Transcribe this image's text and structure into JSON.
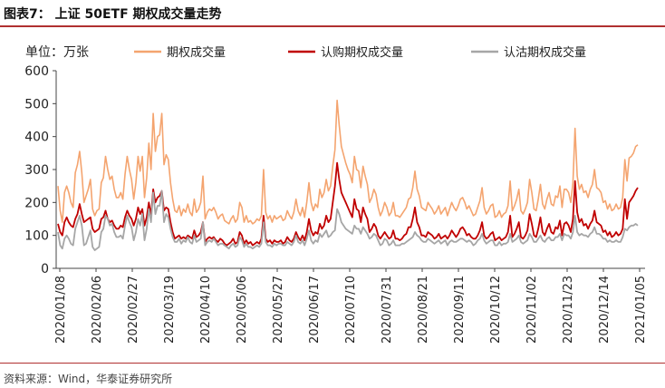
{
  "figure": {
    "title": "图表7： 上证 50ETF 期权成交量走势",
    "source": "资料来源：Wind，华泰证券研究所"
  },
  "chart_data": {
    "type": "line",
    "unit_label": "单位：万张",
    "ylim": [
      0,
      600
    ],
    "yticks": [
      0,
      100,
      200,
      300,
      400,
      500,
      600
    ],
    "x_ticks": [
      "2020/01/08",
      "2020/02/06",
      "2020/02/27",
      "2020/03/19",
      "2020/04/10",
      "2020/05/06",
      "2020/05/27",
      "2020/06/17",
      "2020/07/10",
      "2020/07/31",
      "2020/08/21",
      "2020/09/11",
      "2020/10/12",
      "2020/11/02",
      "2020/11/23",
      "2020/12/14",
      "2021/01/05"
    ],
    "legend_position": "top",
    "grid": false,
    "series": [
      {
        "name": "期权成交量",
        "color": "#f4a46f",
        "values": [
          250,
          175,
          140,
          230,
          250,
          230,
          200,
          185,
          290,
          315,
          355,
          290,
          200,
          220,
          240,
          270,
          180,
          160,
          175,
          180,
          260,
          275,
          340,
          300,
          270,
          280,
          240,
          215,
          215,
          230,
          210,
          285,
          340,
          300,
          270,
          210,
          260,
          340,
          295,
          340,
          215,
          275,
          380,
          300,
          470,
          355,
          400,
          405,
          470,
          315,
          345,
          330,
          260,
          210,
          175,
          170,
          190,
          160,
          180,
          170,
          195,
          170,
          160,
          210,
          170,
          180,
          200,
          280,
          150,
          170,
          180,
          175,
          185,
          170,
          150,
          160,
          165,
          145,
          140,
          135,
          150,
          160,
          140,
          150,
          200,
          185,
          140,
          160,
          140,
          145,
          135,
          140,
          150,
          145,
          160,
          300,
          170,
          150,
          160,
          140,
          160,
          150,
          155,
          160,
          145,
          150,
          175,
          160,
          150,
          170,
          210,
          175,
          160,
          185,
          155,
          200,
          260,
          200,
          175,
          195,
          185,
          240,
          215,
          230,
          270,
          235,
          250,
          310,
          360,
          510,
          435,
          370,
          345,
          320,
          300,
          285,
          260,
          340,
          300,
          295,
          245,
          310,
          280,
          255,
          200,
          215,
          240,
          225,
          185,
          160,
          175,
          200,
          185,
          160,
          170,
          200,
          160,
          160,
          155,
          165,
          175,
          185,
          210,
          215,
          245,
          295,
          240,
          220,
          185,
          180,
          175,
          200,
          190,
          180,
          165,
          175,
          190,
          165,
          175,
          185,
          160,
          180,
          200,
          185,
          175,
          190,
          210,
          215,
          200,
          180,
          190,
          175,
          160,
          165,
          185,
          205,
          245,
          185,
          165,
          175,
          190,
          195,
          155,
          160,
          175,
          155,
          165,
          170,
          190,
          265,
          175,
          190,
          210,
          240,
          175,
          165,
          180,
          200,
          270,
          230,
          180,
          175,
          210,
          255,
          195,
          180,
          210,
          230,
          195,
          190,
          220,
          215,
          250,
          185,
          240,
          240,
          230,
          200,
          260,
          425,
          280,
          240,
          255,
          230,
          235,
          215,
          240,
          255,
          300,
          245,
          240,
          230,
          200,
          205,
          180,
          195,
          175,
          180,
          195,
          180,
          185,
          215,
          330,
          265,
          335,
          340,
          350,
          370,
          375
        ]
      },
      {
        "name": "认购期权成交量",
        "color": "#c00000",
        "values": [
          135,
          110,
          100,
          140,
          155,
          140,
          130,
          125,
          150,
          165,
          195,
          165,
          140,
          145,
          150,
          155,
          120,
          110,
          115,
          120,
          150,
          155,
          175,
          150,
          140,
          145,
          130,
          120,
          120,
          130,
          125,
          155,
          175,
          160,
          150,
          130,
          150,
          185,
          165,
          180,
          130,
          155,
          200,
          160,
          240,
          200,
          215,
          220,
          235,
          175,
          185,
          180,
          140,
          110,
          90,
          95,
          100,
          90,
          95,
          90,
          100,
          95,
          90,
          115,
          95,
          100,
          110,
          140,
          80,
          90,
          95,
          90,
          95,
          85,
          80,
          90,
          85,
          75,
          70,
          75,
          80,
          90,
          75,
          80,
          110,
          100,
          75,
          85,
          75,
          80,
          70,
          75,
          80,
          75,
          90,
          160,
          90,
          80,
          85,
          75,
          85,
          80,
          80,
          85,
          75,
          80,
          95,
          85,
          80,
          90,
          110,
          95,
          85,
          100,
          85,
          110,
          150,
          115,
          100,
          110,
          105,
          135,
          120,
          130,
          160,
          140,
          150,
          200,
          250,
          320,
          270,
          230,
          215,
          200,
          185,
          170,
          155,
          210,
          180,
          175,
          140,
          185,
          165,
          150,
          110,
          120,
          135,
          125,
          100,
          90,
          100,
          110,
          100,
          90,
          95,
          115,
          90,
          90,
          85,
          90,
          100,
          105,
          125,
          125,
          150,
          185,
          140,
          125,
          100,
          100,
          95,
          110,
          105,
          100,
          90,
          95,
          105,
          90,
          95,
          100,
          90,
          100,
          115,
          105,
          95,
          105,
          120,
          125,
          115,
          100,
          105,
          95,
          90,
          90,
          100,
          115,
          140,
          100,
          90,
          95,
          105,
          110,
          85,
          90,
          95,
          85,
          90,
          95,
          110,
          160,
          95,
          105,
          120,
          140,
          95,
          90,
          100,
          115,
          165,
          135,
          100,
          95,
          120,
          155,
          110,
          100,
          120,
          135,
          110,
          105,
          125,
          120,
          145,
          100,
          135,
          140,
          130,
          110,
          150,
          265,
          170,
          140,
          150,
          130,
          135,
          120,
          135,
          145,
          175,
          140,
          135,
          130,
          110,
          115,
          100,
          110,
          95,
          100,
          110,
          100,
          105,
          120,
          210,
          150,
          200,
          210,
          220,
          235,
          245
        ]
      },
      {
        "name": "认沽期权成交量",
        "color": "#a6a6a6",
        "values": [
          110,
          70,
          60,
          90,
          100,
          90,
          75,
          70,
          120,
          140,
          160,
          130,
          70,
          75,
          95,
          115,
          65,
          55,
          60,
          65,
          110,
          120,
          160,
          150,
          130,
          135,
          110,
          95,
          95,
          100,
          90,
          130,
          160,
          140,
          125,
          85,
          110,
          150,
          130,
          165,
          85,
          120,
          180,
          140,
          230,
          165,
          190,
          190,
          235,
          140,
          165,
          155,
          120,
          95,
          80,
          80,
          90,
          75,
          85,
          80,
          95,
          80,
          75,
          100,
          80,
          85,
          90,
          140,
          70,
          80,
          85,
          80,
          90,
          80,
          70,
          75,
          75,
          70,
          65,
          60,
          70,
          75,
          65,
          70,
          95,
          85,
          65,
          75,
          65,
          65,
          60,
          65,
          70,
          65,
          75,
          140,
          80,
          70,
          70,
          65,
          75,
          70,
          75,
          75,
          70,
          70,
          80,
          75,
          70,
          80,
          100,
          80,
          75,
          85,
          70,
          90,
          115,
          85,
          75,
          85,
          80,
          105,
          95,
          105,
          115,
          95,
          100,
          110,
          115,
          180,
          165,
          140,
          130,
          120,
          115,
          110,
          105,
          130,
          120,
          120,
          105,
          125,
          115,
          105,
          90,
          95,
          105,
          100,
          85,
          70,
          75,
          90,
          85,
          70,
          75,
          85,
          70,
          70,
          70,
          75,
          75,
          80,
          85,
          90,
          95,
          110,
          100,
          95,
          85,
          80,
          80,
          90,
          85,
          80,
          75,
          80,
          85,
          75,
          80,
          85,
          70,
          80,
          85,
          80,
          80,
          85,
          90,
          90,
          85,
          80,
          85,
          80,
          70,
          75,
          85,
          90,
          105,
          85,
          75,
          80,
          85,
          85,
          70,
          70,
          80,
          70,
          75,
          75,
          80,
          105,
          80,
          85,
          90,
          100,
          80,
          75,
          80,
          85,
          105,
          95,
          80,
          80,
          90,
          100,
          85,
          80,
          90,
          95,
          85,
          85,
          95,
          95,
          105,
          85,
          105,
          100,
          100,
          90,
          110,
          160,
          110,
          100,
          105,
          100,
          100,
          95,
          105,
          110,
          125,
          105,
          105,
          100,
          90,
          90,
          80,
          85,
          80,
          80,
          85,
          80,
          80,
          95,
          120,
          115,
          125,
          130,
          130,
          135,
          130
        ]
      }
    ]
  }
}
